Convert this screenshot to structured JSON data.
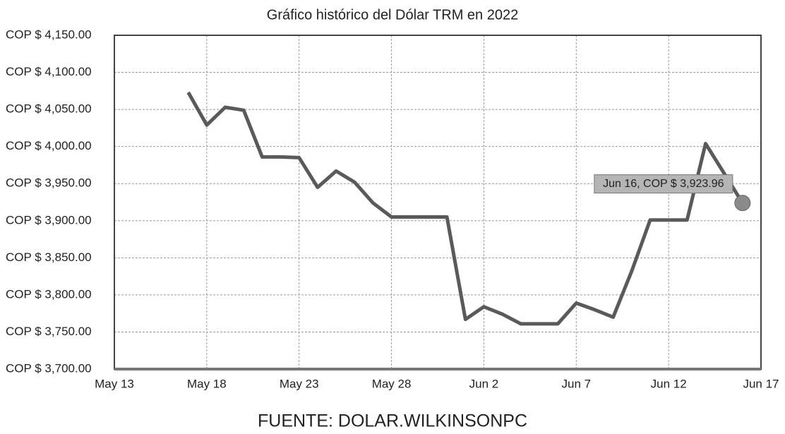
{
  "chart_data": {
    "type": "line",
    "title": "Gráfico histórico del Dólar TRM en 2022",
    "source": "FUENTE: DOLAR.WILKINSONPC",
    "annotation": "Jun 16, COP $ 3,923.96",
    "categories": [
      "May 13",
      null,
      null,
      null,
      null,
      "May 18",
      null,
      null,
      null,
      null,
      "May 23",
      null,
      null,
      null,
      null,
      "May 28",
      null,
      null,
      null,
      null,
      "Jun 2",
      null,
      null,
      null,
      null,
      "Jun 7",
      null,
      null,
      null,
      null,
      "Jun 12",
      null,
      null,
      null,
      null,
      "Jun 17"
    ],
    "series": [
      {
        "color": "#5a5a5a",
        "values": [
          null,
          null,
          null,
          null,
          4073,
          4029,
          4053,
          4049,
          3986,
          3986,
          3985,
          3945,
          3967,
          3952,
          3924,
          3905,
          3905,
          3905,
          3905,
          3767,
          3784,
          3774,
          3761,
          3761,
          3761,
          3789,
          3780,
          3770,
          3832,
          3901,
          3901,
          3901,
          4004,
          3964,
          3923.96,
          null
        ]
      }
    ],
    "ylim": [
      3700,
      4150
    ],
    "yticks": [
      {
        "value": 3700,
        "label": "COP $ 3,700.00"
      },
      {
        "value": 3750,
        "label": "COP $ 3,750.00"
      },
      {
        "value": 3800,
        "label": "COP $ 3,800.00"
      },
      {
        "value": 3850,
        "label": "COP $ 3,850.00"
      },
      {
        "value": 3900,
        "label": "COP $ 3,900.00"
      },
      {
        "value": 3950,
        "label": "COP $ 3,950.00"
      },
      {
        "value": 4000,
        "label": "COP $ 4,000.00"
      },
      {
        "value": 4050,
        "label": "COP $ 4,050.00"
      },
      {
        "value": 4100,
        "label": "COP $ 4,100.00"
      },
      {
        "value": 4150,
        "label": "COP $ 4,150.00"
      }
    ],
    "grid": true
  }
}
